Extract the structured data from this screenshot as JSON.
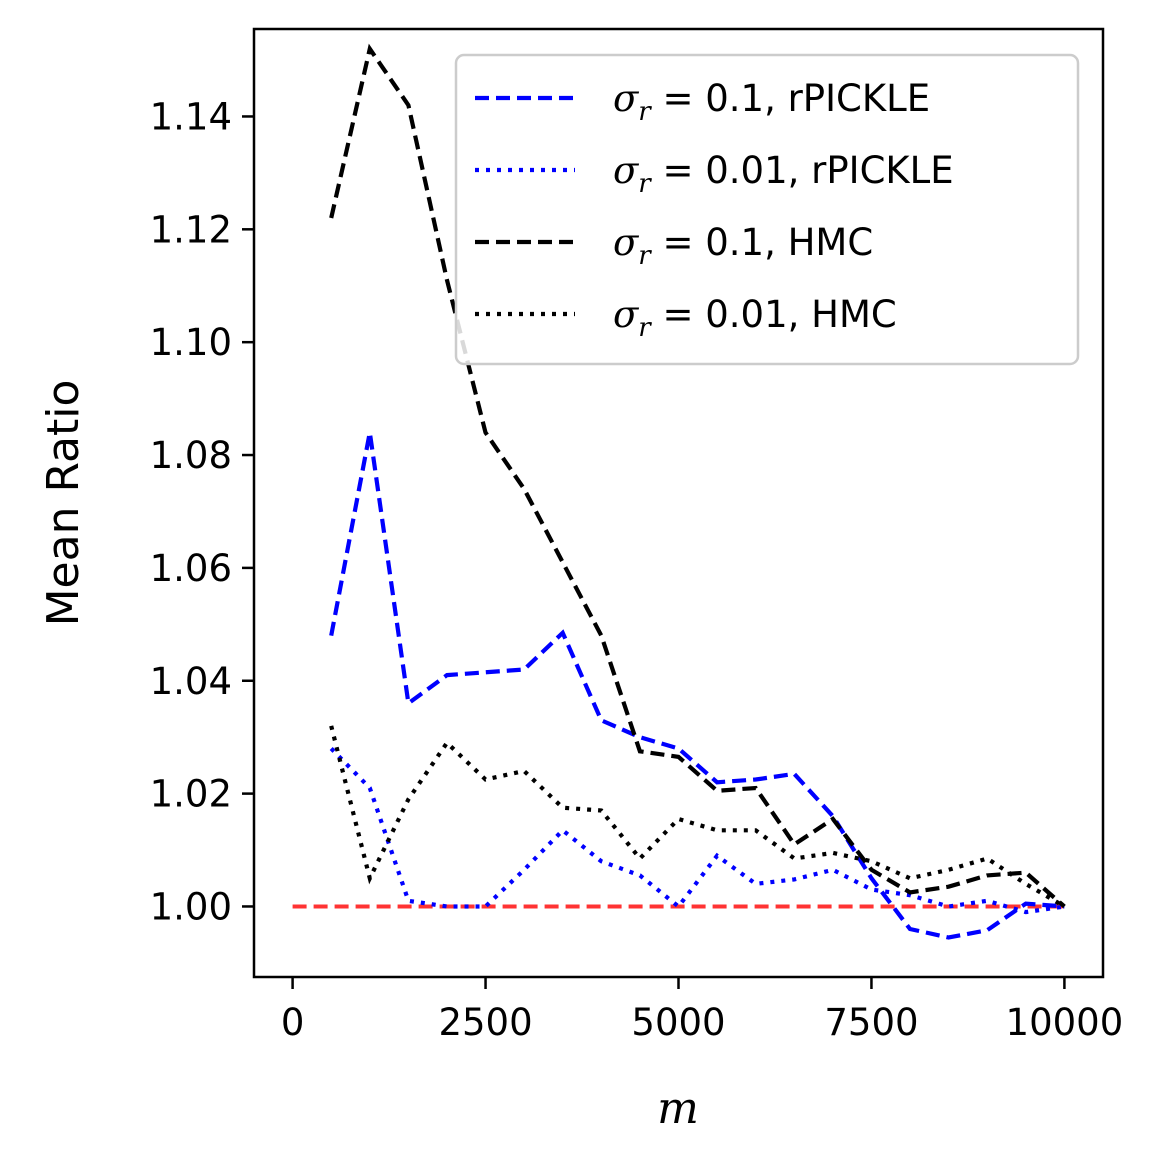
{
  "chart_data": {
    "type": "line",
    "title": "",
    "xlabel": "m",
    "ylabel": "Mean Ratio",
    "xlim": [
      -500,
      10500
    ],
    "ylim": [
      0.9875,
      1.1555
    ],
    "xticks": [
      0,
      2500,
      5000,
      7500,
      10000
    ],
    "xtick_labels": [
      "0",
      "2500",
      "5000",
      "7500",
      "10000"
    ],
    "yticks": [
      1.0,
      1.02,
      1.04,
      1.06,
      1.08,
      1.1,
      1.12,
      1.14
    ],
    "ytick_labels": [
      "1.00",
      "1.02",
      "1.04",
      "1.06",
      "1.08",
      "1.10",
      "1.12",
      "1.14"
    ],
    "grid": false,
    "legend_position": "top-right",
    "x": [
      500,
      1000,
      1500,
      2000,
      2500,
      3000,
      3500,
      4000,
      4500,
      5000,
      5500,
      6000,
      6500,
      7000,
      7500,
      8000,
      8500,
      9000,
      9500,
      10000
    ],
    "series": [
      {
        "name": "σ_r = 0.1, rPICKLE",
        "legend_sigma": "σ",
        "legend_sub": "r",
        "legend_rest": " = 0.1, rPICKLE",
        "color": "#0000ff",
        "linestyle": "dashed",
        "values": [
          1.048,
          1.084,
          1.036,
          1.041,
          1.0415,
          1.042,
          1.0485,
          1.033,
          1.03,
          1.028,
          1.022,
          1.0225,
          1.0235,
          1.016,
          1.005,
          0.996,
          0.9945,
          0.9958,
          1.0005,
          1.0
        ]
      },
      {
        "name": "σ_r = 0.01, rPICKLE",
        "legend_sigma": "σ",
        "legend_sub": "r",
        "legend_rest": " = 0.01, rPICKLE",
        "color": "#0000ff",
        "linestyle": "dotted",
        "values": [
          1.028,
          1.021,
          1.001,
          1.0,
          1.0,
          1.0065,
          1.0135,
          1.008,
          1.0055,
          1.0,
          1.009,
          1.004,
          1.0048,
          1.0065,
          1.003,
          1.002,
          1.0,
          1.001,
          0.999,
          1.0
        ]
      },
      {
        "name": "σ_r = 0.1, HMC",
        "legend_sigma": "σ",
        "legend_sub": "r",
        "legend_rest": " = 0.1, HMC",
        "color": "#000000",
        "linestyle": "dashed",
        "values": [
          1.122,
          1.152,
          1.142,
          1.111,
          1.084,
          1.074,
          1.061,
          1.048,
          1.0275,
          1.0265,
          1.0205,
          1.021,
          1.011,
          1.0155,
          1.0065,
          1.0025,
          1.0035,
          1.0055,
          1.006,
          1.0
        ]
      },
      {
        "name": "σ_r = 0.01, HMC",
        "legend_sigma": "σ",
        "legend_sub": "r",
        "legend_rest": " = 0.01, HMC",
        "color": "#000000",
        "linestyle": "dotted",
        "values": [
          1.032,
          1.005,
          1.019,
          1.029,
          1.0225,
          1.024,
          1.0175,
          1.017,
          1.0085,
          1.0155,
          1.0135,
          1.0135,
          1.0085,
          1.0095,
          1.008,
          1.005,
          1.0065,
          1.0085,
          1.004,
          1.0
        ]
      }
    ],
    "reference_line": {
      "y": 1.0,
      "x": [
        0,
        10000
      ],
      "color": "#ff3333",
      "linestyle": "dashed"
    }
  }
}
